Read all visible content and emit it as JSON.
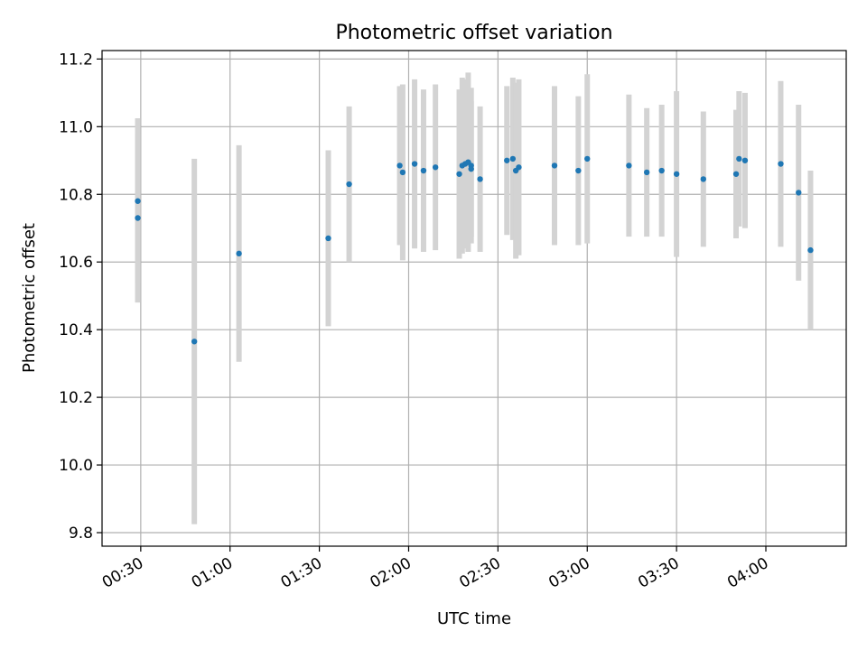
{
  "chart_data": {
    "type": "scatter",
    "title": "Photometric offset variation",
    "xlabel": "UTC time",
    "ylabel": "Photometric offset",
    "grid": true,
    "xlim_minutes": [
      17,
      267
    ],
    "ylim": [
      9.76,
      11.225
    ],
    "x_ticks": [
      "00:30",
      "01:00",
      "01:30",
      "02:00",
      "02:30",
      "03:00",
      "03:30",
      "04:00"
    ],
    "y_ticks": [
      "9.8",
      "10.0",
      "10.2",
      "10.4",
      "10.6",
      "10.8",
      "11.0",
      "11.2"
    ],
    "colors": {
      "points": "#1f77b4",
      "errorbars": "#d3d3d3",
      "grid": "#b0b0b0"
    },
    "series": [
      {
        "points": [
          {
            "t": "00:29",
            "y": 10.73,
            "err": 0.25
          },
          {
            "t": "00:29",
            "y": 10.78,
            "err": 0.245
          },
          {
            "t": "00:48",
            "y": 10.365,
            "err": 0.54
          },
          {
            "t": "01:03",
            "y": 10.625,
            "err": 0.32
          },
          {
            "t": "01:33",
            "y": 10.67,
            "err": 0.26
          },
          {
            "t": "01:40",
            "y": 10.83,
            "err": 0.23
          },
          {
            "t": "01:57",
            "y": 10.885,
            "err": 0.235
          },
          {
            "t": "01:58",
            "y": 10.865,
            "err": 0.26
          },
          {
            "t": "02:02",
            "y": 10.89,
            "err": 0.25
          },
          {
            "t": "02:05",
            "y": 10.87,
            "err": 0.24
          },
          {
            "t": "02:09",
            "y": 10.88,
            "err": 0.245
          },
          {
            "t": "02:17",
            "y": 10.86,
            "err": 0.25
          },
          {
            "t": "02:18",
            "y": 10.885,
            "err": 0.26
          },
          {
            "t": "02:19",
            "y": 10.89,
            "err": 0.25
          },
          {
            "t": "02:20",
            "y": 10.895,
            "err": 0.265
          },
          {
            "t": "02:21",
            "y": 10.885,
            "err": 0.23
          },
          {
            "t": "02:21",
            "y": 10.875,
            "err": 0.2
          },
          {
            "t": "02:24",
            "y": 10.845,
            "err": 0.215
          },
          {
            "t": "02:33",
            "y": 10.9,
            "err": 0.22
          },
          {
            "t": "02:35",
            "y": 10.905,
            "err": 0.24
          },
          {
            "t": "02:36",
            "y": 10.87,
            "err": 0.26
          },
          {
            "t": "02:37",
            "y": 10.88,
            "err": 0.26
          },
          {
            "t": "02:49",
            "y": 10.885,
            "err": 0.235
          },
          {
            "t": "02:57",
            "y": 10.87,
            "err": 0.22
          },
          {
            "t": "03:00",
            "y": 10.905,
            "err": 0.25
          },
          {
            "t": "03:14",
            "y": 10.885,
            "err": 0.21
          },
          {
            "t": "03:20",
            "y": 10.865,
            "err": 0.19
          },
          {
            "t": "03:25",
            "y": 10.87,
            "err": 0.195
          },
          {
            "t": "03:30",
            "y": 10.86,
            "err": 0.245
          },
          {
            "t": "03:39",
            "y": 10.845,
            "err": 0.2
          },
          {
            "t": "03:50",
            "y": 10.86,
            "err": 0.19
          },
          {
            "t": "03:51",
            "y": 10.905,
            "err": 0.2
          },
          {
            "t": "03:53",
            "y": 10.9,
            "err": 0.2
          },
          {
            "t": "04:05",
            "y": 10.89,
            "err": 0.245
          },
          {
            "t": "04:11",
            "y": 10.805,
            "err": 0.26
          },
          {
            "t": "04:15",
            "y": 10.635,
            "err": 0.235
          }
        ]
      }
    ]
  }
}
